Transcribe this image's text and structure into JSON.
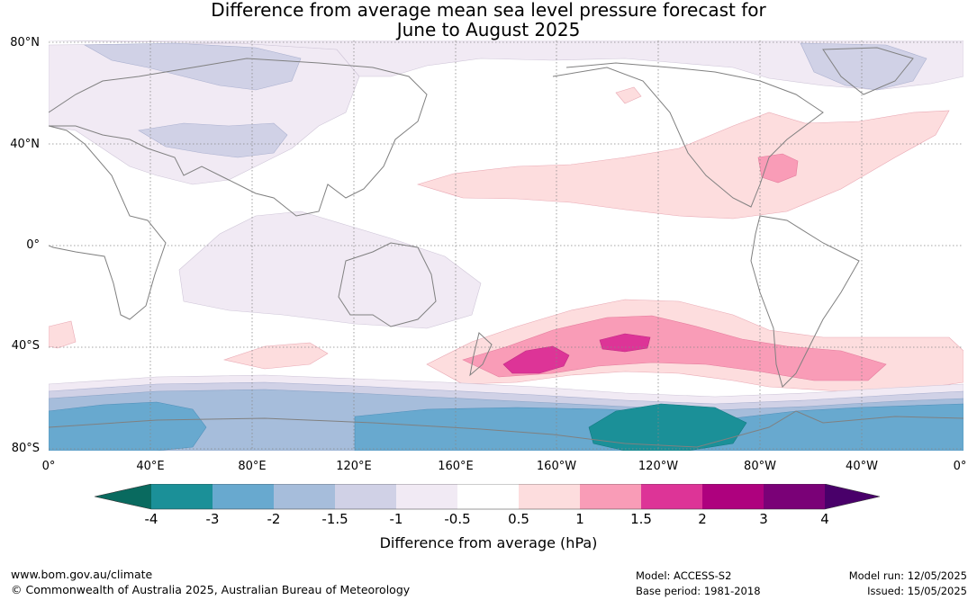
{
  "title_line1": "Difference from average mean sea level pressure forecast for",
  "title_line2": "June to August 2025",
  "lat_labels": [
    "80°N",
    "40°N",
    "0°",
    "40°S",
    "80°S"
  ],
  "lon_labels": [
    "0°",
    "40°E",
    "80°E",
    "120°E",
    "160°E",
    "160°W",
    "120°W",
    "80°W",
    "40°W",
    "0°"
  ],
  "colorbar": {
    "ticks": [
      "-4",
      "-3",
      "-2",
      "-1.5",
      "-1",
      "-0.5",
      "0.5",
      "1",
      "1.5",
      "2",
      "3",
      "4"
    ],
    "colors": [
      "#096a5f",
      "#1b9098",
      "#68a9cf",
      "#a6bddb",
      "#d0d1e6",
      "#f1eaf4",
      "#ffffff",
      "#fdddde",
      "#f99cb7",
      "#dd3497",
      "#ae017e",
      "#7a0177",
      "#49006a"
    ],
    "label": "Difference from average (hPa)"
  },
  "footer": {
    "url": "www.bom.gov.au/climate",
    "copyright": "© Commonwealth of Australia 2025, Australian Bureau of Meteorology",
    "model": "Model: ACCESS-S2",
    "base_period": "Base period: 1981-2018",
    "model_run": "Model run: 12/05/2025",
    "issued": "Issued: 15/05/2025"
  },
  "map": {
    "projection": "equirectangular",
    "central_longitude": "180",
    "gridlines": true,
    "coastline_color": "#808080"
  }
}
